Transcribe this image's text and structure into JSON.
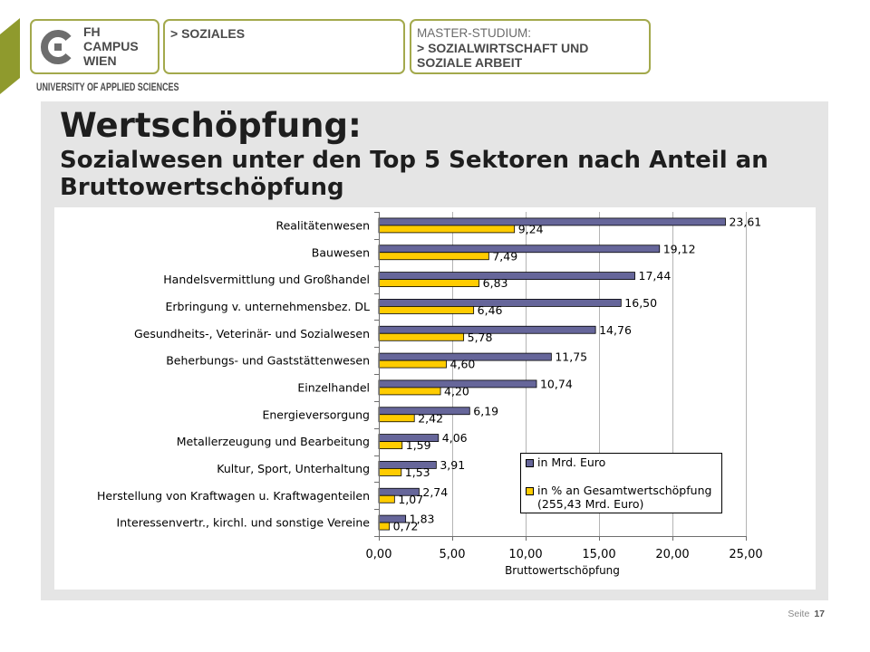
{
  "header": {
    "logo_lines": [
      "FH",
      "CAMPUS",
      "WIEN"
    ],
    "tagline": "UNIVERSITY OF APPLIED SCIENCES",
    "department": "> SOZIALES",
    "program": {
      "label": "MASTER-STUDIUM:",
      "name_line1": "> SOZIALWIRTSCHAFT UND",
      "name_line2": "SOZIALE ARBEIT"
    }
  },
  "slide": {
    "title": "Wertschöpfung:",
    "subtitle_lines": [
      "Sozialwesen unter den Top 5 Sektoren nach Anteil an",
      "Bruttowertschöpfung"
    ]
  },
  "footer": {
    "page_label": "Seite",
    "page_number": "17"
  },
  "colors": {
    "brand_green": "#8f9a2d",
    "brand_border": "#a3a94c",
    "text_dark": "#4a4a4a",
    "panel_gray": "#e5e5e5"
  },
  "chart_data": {
    "type": "bar",
    "orientation": "horizontal",
    "title": "",
    "xlabel": "Bruttowertschöpfung",
    "ylabel": "",
    "xlim": [
      0,
      25
    ],
    "xticks": [
      0,
      5,
      10,
      15,
      20,
      25
    ],
    "grid": true,
    "legend_position": "bottom-right",
    "categories": [
      "Realitätenwesen",
      "Bauwesen",
      "Handelsvermittlung und Großhandel",
      "Erbringung v. unternehmensbez. DL",
      "Gesundheits-, Veterinär- und Sozialwesen",
      "Beherbungs- und Gaststättenwesen",
      "Einzelhandel",
      "Energieversorgung",
      "Metallerzeugung und Bearbeitung",
      "Kultur, Sport, Unterhaltung",
      "Herstellung von Kraftwagen u. Kraftwagenteilen",
      "Interessenvertr., kirchl. und sonstige Vereine"
    ],
    "series": [
      {
        "name_lines": [
          "in Mrd. Euro"
        ],
        "color": "#66669a",
        "values": [
          23.61,
          19.12,
          17.44,
          16.5,
          14.76,
          11.75,
          10.74,
          6.19,
          4.06,
          3.91,
          2.74,
          1.83
        ]
      },
      {
        "name_lines": [
          "in % an Gesamtwertschöpfung",
          "(255,43 Mrd. Euro)"
        ],
        "color": "#ffcc00",
        "values": [
          9.24,
          7.49,
          6.83,
          6.46,
          5.78,
          4.6,
          4.2,
          2.42,
          1.59,
          1.53,
          1.07,
          0.72
        ]
      }
    ]
  }
}
